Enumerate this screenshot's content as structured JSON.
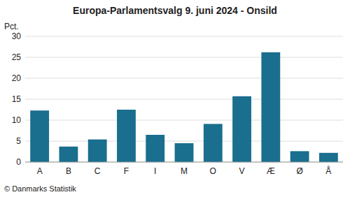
{
  "chart_data": {
    "type": "bar",
    "title": "Europa-Parlamentsvalg 9. juni 2024 - Onsild",
    "ylabel": "Pct.",
    "footer": "© Danmarks Statistik",
    "categories": [
      "A",
      "B",
      "C",
      "F",
      "I",
      "M",
      "O",
      "V",
      "Æ",
      "Ø",
      "Å"
    ],
    "values": [
      12.3,
      3.7,
      5.4,
      12.5,
      6.5,
      4.5,
      9.1,
      15.7,
      26.2,
      2.6,
      2.2
    ],
    "color": "#1a6e8e",
    "ylim": [
      0,
      30
    ],
    "yticks": [
      0,
      5,
      10,
      15,
      20,
      25,
      30
    ],
    "grid": true
  }
}
